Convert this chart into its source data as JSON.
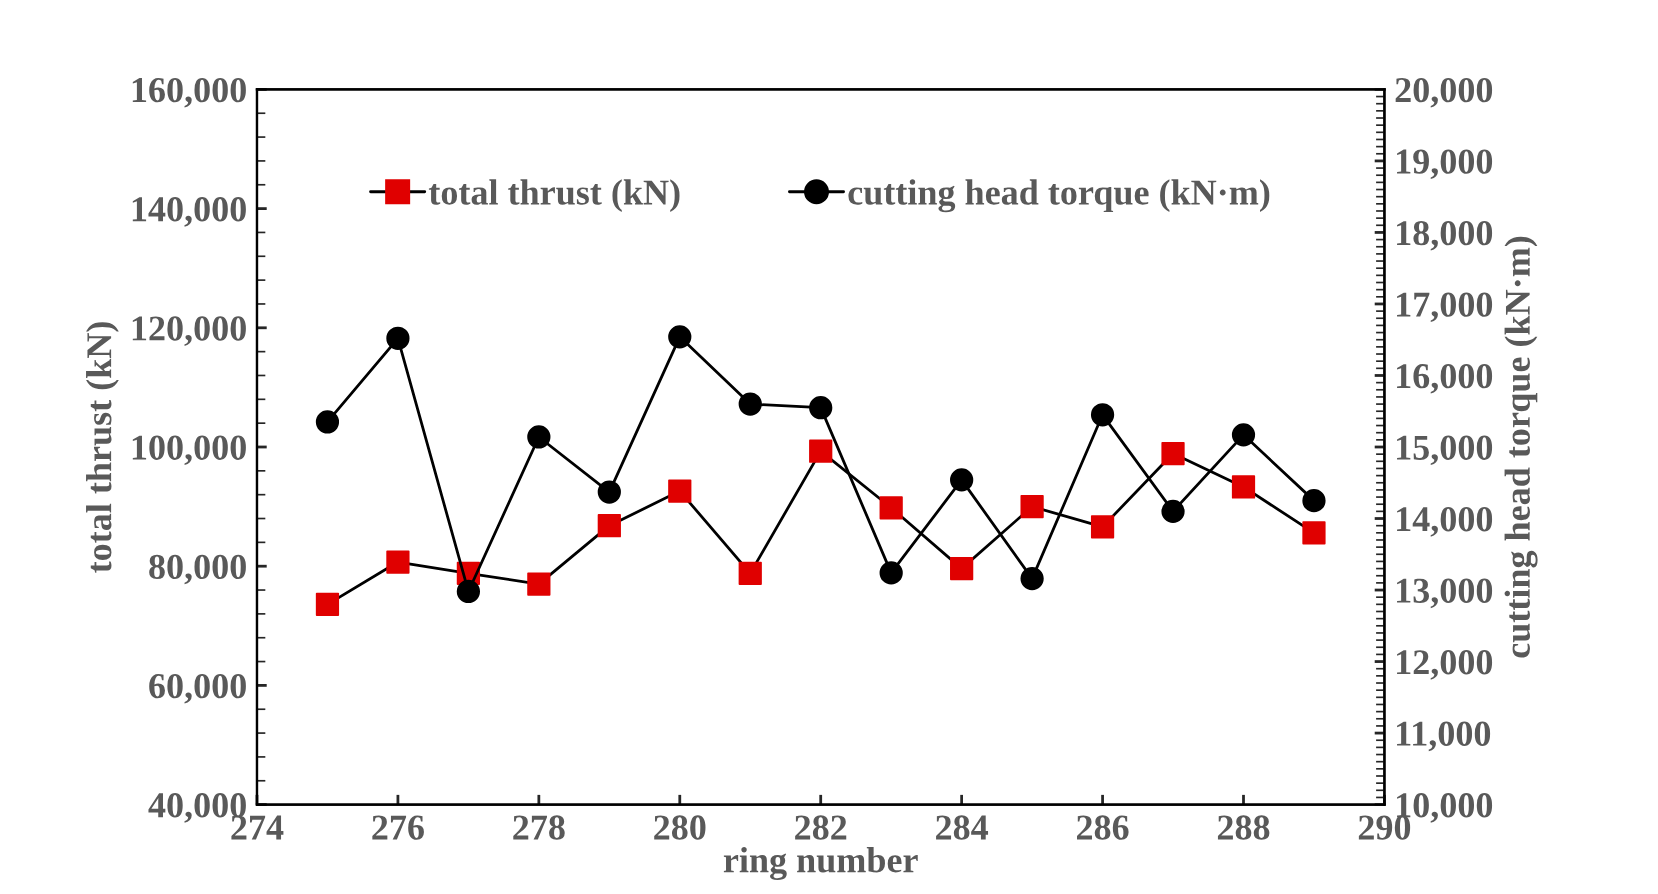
{
  "chart_data": {
    "type": "line",
    "xlabel": "ring number",
    "ylabel": "total thrust (kN)",
    "y2label": "cutting head torque (kN·m)",
    "x": [
      275,
      276,
      277,
      278,
      279,
      280,
      281,
      282,
      283,
      284,
      285,
      286,
      287,
      288,
      289
    ],
    "series": [
      {
        "name": "total thrust (kN)",
        "color": "#e00000",
        "marker": "square",
        "values": [
          73600,
          80700,
          78800,
          77000,
          86800,
          92600,
          78800,
          99300,
          89800,
          79600,
          90000,
          86600,
          98900,
          93300,
          85600
        ]
      },
      {
        "name": "cutting head torque (kN·m)",
        "color": "#000000",
        "marker": "circle",
        "axis": "y2",
        "values": [
          15350,
          16520,
          12980,
          15140,
          14370,
          16540,
          15600,
          15550,
          13240,
          14540,
          13160,
          15450,
          14100,
          15170,
          14250
        ]
      }
    ],
    "xlim": [
      274,
      290
    ],
    "xticks": [
      274,
      276,
      278,
      280,
      282,
      284,
      286,
      288,
      290
    ],
    "ylim": [
      40000,
      160000
    ],
    "yticks": [
      {
        "value": 40000,
        "label": "40,000"
      },
      {
        "value": 60000,
        "label": "60,000"
      },
      {
        "value": 80000,
        "label": "80,000"
      },
      {
        "value": 100000,
        "label": "100,000"
      },
      {
        "value": 120000,
        "label": "120,000"
      },
      {
        "value": 140000,
        "label": "140,000"
      },
      {
        "value": 160000,
        "label": "160,000"
      }
    ],
    "y2lim": [
      10000,
      20000
    ],
    "y2ticks": [
      {
        "value": 10000,
        "label": "10,000"
      },
      {
        "value": 11000,
        "label": "11,000"
      },
      {
        "value": 12000,
        "label": "12,000"
      },
      {
        "value": 13000,
        "label": "13,000"
      },
      {
        "value": 14000,
        "label": "14,000"
      },
      {
        "value": 15000,
        "label": "15,000"
      },
      {
        "value": 16000,
        "label": "16,000"
      },
      {
        "value": 17000,
        "label": "17,000"
      },
      {
        "value": 18000,
        "label": "18,000"
      },
      {
        "value": 19000,
        "label": "19,000"
      },
      {
        "value": 20000,
        "label": "20,000"
      }
    ],
    "grid": false,
    "legend": "top",
    "line_style": "solid"
  }
}
